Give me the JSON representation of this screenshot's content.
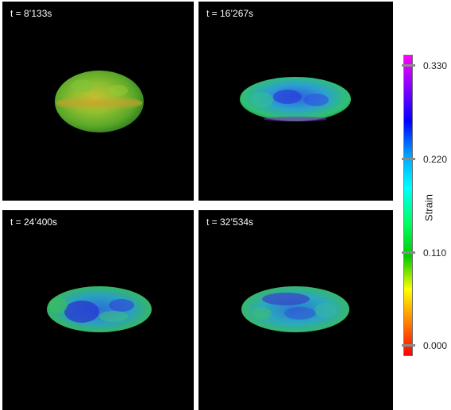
{
  "panels": [
    {
      "time_label": "t = 8’133s",
      "state": "initial green body"
    },
    {
      "time_label": "t = 16’267s",
      "state": "flattened ellipsoid"
    },
    {
      "time_label": "t = 24’400s",
      "state": "flattened ellipsoid"
    },
    {
      "time_label": "t = 32’534s",
      "state": "flattened ellipsoid"
    }
  ],
  "colorbar": {
    "title": "Strain",
    "ticks": [
      "0.330",
      "0.220",
      "0.110",
      "0.000"
    ],
    "tick_values": [
      0.33,
      0.22,
      0.11,
      0.0
    ],
    "colors": [
      "#ff00ff",
      "#8000ff",
      "#0000ff",
      "#00a0ff",
      "#00ffff",
      "#00ff60",
      "#00cc00",
      "#ffff00",
      "#ff8000",
      "#ff0000"
    ]
  },
  "colors": {
    "panel_bg": "#000000",
    "page_bg": "#ffffff"
  }
}
